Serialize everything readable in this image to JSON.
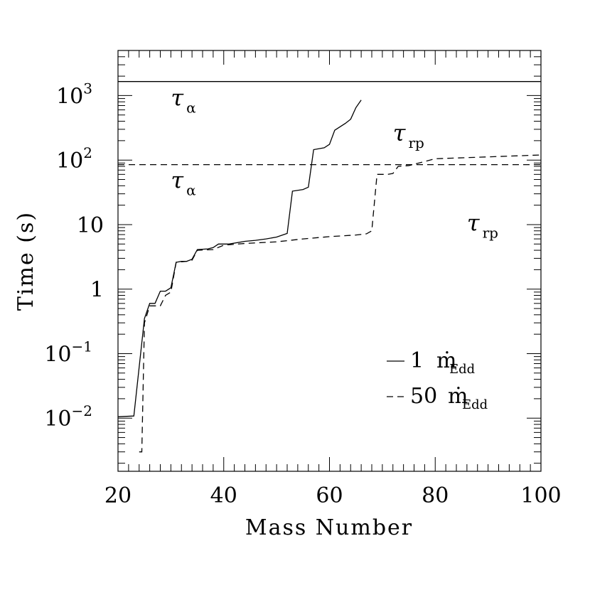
{
  "chart_data": {
    "type": "line",
    "title": "",
    "xlabel": "Mass Number",
    "ylabel": "Time (s)",
    "xlim": [
      20,
      100
    ],
    "ylim": [
      0.0015,
      5000
    ],
    "yscale": "log",
    "x_ticks": [
      20,
      40,
      60,
      80,
      100
    ],
    "x_tick_labels": [
      "20",
      "40",
      "60",
      "80",
      "100"
    ],
    "y_ticks": [
      {
        "value": 0.01,
        "base": "10",
        "exp": "−2"
      },
      {
        "value": 0.1,
        "base": "10",
        "exp": "−1"
      },
      {
        "value": 1,
        "base": "1",
        "exp": ""
      },
      {
        "value": 10,
        "base": "10",
        "exp": ""
      },
      {
        "value": 100,
        "base": "10",
        "exp": "2"
      },
      {
        "value": 1000,
        "base": "10",
        "exp": "3"
      }
    ],
    "series": [
      {
        "name": "1 ṁEdd",
        "style": "solid",
        "tau_rp": [
          [
            20,
            0.0105
          ],
          [
            23,
            0.0108
          ],
          [
            25,
            0.35
          ],
          [
            26,
            0.6
          ],
          [
            27,
            0.6
          ],
          [
            28,
            0.93
          ],
          [
            29,
            0.93
          ],
          [
            30,
            1.05
          ],
          [
            31,
            2.6
          ],
          [
            32,
            2.7
          ],
          [
            33,
            2.7
          ],
          [
            34,
            2.9
          ],
          [
            35,
            4.1
          ],
          [
            37,
            4.2
          ],
          [
            38,
            4.4
          ],
          [
            39,
            5.0
          ],
          [
            41,
            5.0
          ],
          [
            44,
            5.5
          ],
          [
            46,
            5.7
          ],
          [
            48,
            6.0
          ],
          [
            50,
            6.4
          ],
          [
            52,
            7.3
          ],
          [
            53,
            33
          ],
          [
            55,
            35
          ],
          [
            56,
            38
          ],
          [
            57,
            145
          ],
          [
            59,
            155
          ],
          [
            60,
            175
          ],
          [
            61,
            290
          ],
          [
            63,
            370
          ],
          [
            64,
            430
          ],
          [
            65,
            650
          ],
          [
            66,
            850
          ]
        ],
        "tau_alpha": 1650
      },
      {
        "name": "50 ṁEdd",
        "style": "dashed",
        "tau_rp": [
          [
            24,
            0.003
          ],
          [
            24.5,
            0.003
          ],
          [
            25,
            0.3
          ],
          [
            26,
            0.55
          ],
          [
            28,
            0.55
          ],
          [
            29,
            0.8
          ],
          [
            30,
            0.9
          ],
          [
            31,
            2.6
          ],
          [
            33,
            2.7
          ],
          [
            34,
            2.8
          ],
          [
            35,
            4.0
          ],
          [
            38,
            4.1
          ],
          [
            40,
            4.8
          ],
          [
            44,
            5.1
          ],
          [
            50,
            5.4
          ],
          [
            55,
            6.0
          ],
          [
            60,
            6.5
          ],
          [
            65,
            6.9
          ],
          [
            67,
            7.2
          ],
          [
            68,
            8.0
          ],
          [
            69,
            60
          ],
          [
            71,
            60
          ],
          [
            72,
            62
          ],
          [
            73,
            80
          ],
          [
            75,
            82
          ],
          [
            80,
            105
          ],
          [
            90,
            112
          ],
          [
            100,
            120
          ]
        ],
        "tau_alpha": 85
      }
    ],
    "annotations": [
      {
        "main": "τ",
        "sub": "α",
        "series": "1 ṁEdd",
        "x": 30,
        "y": 700
      },
      {
        "main": "τ",
        "sub": "rp",
        "series": "1 ṁEdd",
        "x": 72,
        "y": 200
      },
      {
        "main": "τ",
        "sub": "α",
        "series": "50 ṁEdd",
        "x": 30,
        "y": 37
      },
      {
        "main": "τ",
        "sub": "rp",
        "series": "50 ṁEdd",
        "x": 86,
        "y": 8
      }
    ],
    "legend": [
      {
        "number": "1",
        "m": "ṁ",
        "sub": "Edd",
        "style": "solid"
      },
      {
        "number": "50",
        "m": "ṁ",
        "sub": "Edd",
        "style": "dashed"
      }
    ],
    "legend_position": "bottom-right"
  }
}
